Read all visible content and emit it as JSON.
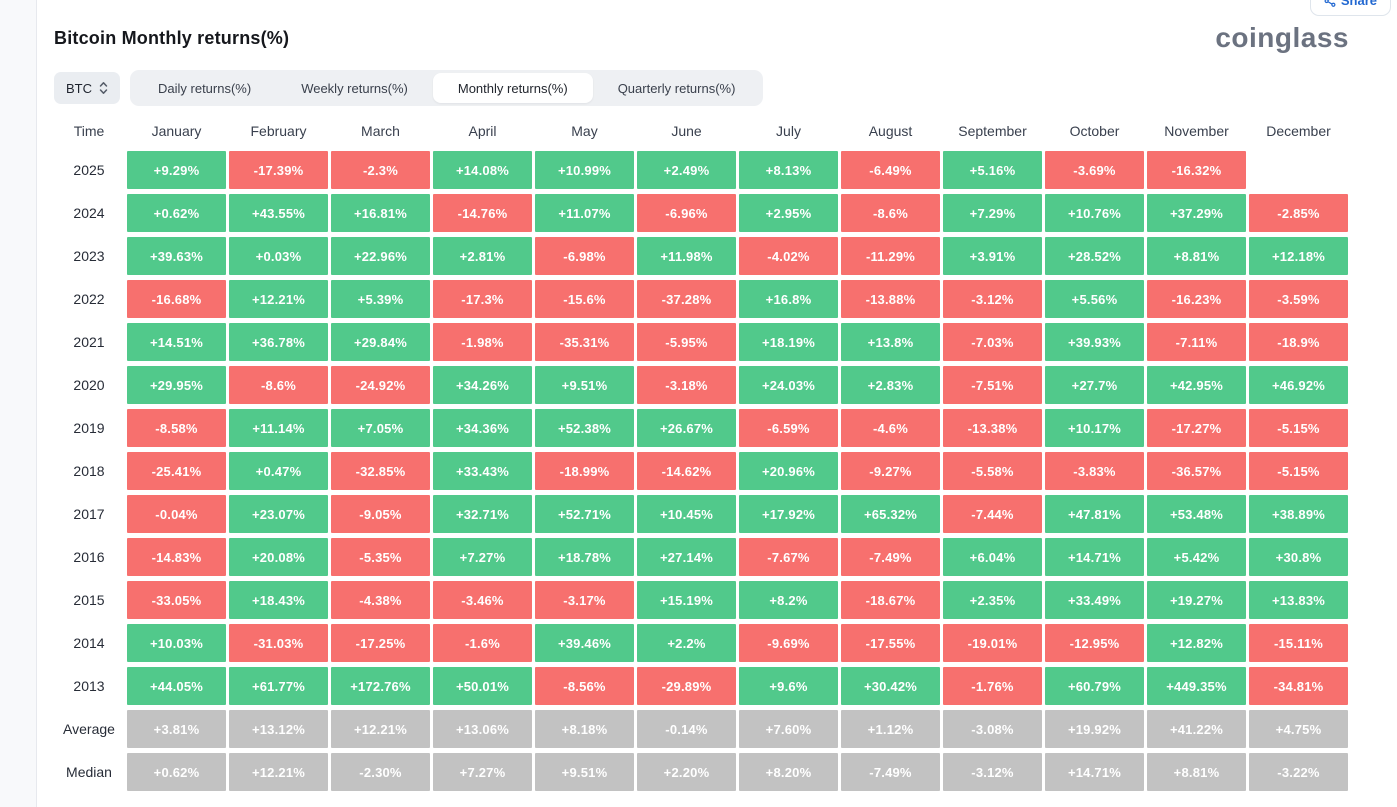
{
  "header": {
    "title": "Bitcoin Monthly returns(%)",
    "logo": "coinglass",
    "share_label": "Share"
  },
  "controls": {
    "symbol": "BTC",
    "tabs": [
      {
        "label": "Daily returns(%)",
        "active": false
      },
      {
        "label": "Weekly returns(%)",
        "active": false
      },
      {
        "label": "Monthly returns(%)",
        "active": true
      },
      {
        "label": "Quarterly returns(%)",
        "active": false
      }
    ]
  },
  "colors": {
    "positive": "#51C98B",
    "negative": "#F7706E",
    "summary": "#C2C2C2"
  },
  "chart_data": {
    "type": "heatmap",
    "title": "Bitcoin Monthly returns(%)",
    "columns": [
      "Time",
      "January",
      "February",
      "March",
      "April",
      "May",
      "June",
      "July",
      "August",
      "September",
      "October",
      "November",
      "December"
    ],
    "rows": [
      {
        "label": "2025",
        "type": "year",
        "values": [
          "+9.29%",
          "-17.39%",
          "-2.3%",
          "+14.08%",
          "+10.99%",
          "+2.49%",
          "+8.13%",
          "-6.49%",
          "+5.16%",
          "-3.69%",
          "-16.32%",
          ""
        ]
      },
      {
        "label": "2024",
        "type": "year",
        "values": [
          "+0.62%",
          "+43.55%",
          "+16.81%",
          "-14.76%",
          "+11.07%",
          "-6.96%",
          "+2.95%",
          "-8.6%",
          "+7.29%",
          "+10.76%",
          "+37.29%",
          "-2.85%"
        ]
      },
      {
        "label": "2023",
        "type": "year",
        "values": [
          "+39.63%",
          "+0.03%",
          "+22.96%",
          "+2.81%",
          "-6.98%",
          "+11.98%",
          "-4.02%",
          "-11.29%",
          "+3.91%",
          "+28.52%",
          "+8.81%",
          "+12.18%"
        ]
      },
      {
        "label": "2022",
        "type": "year",
        "values": [
          "-16.68%",
          "+12.21%",
          "+5.39%",
          "-17.3%",
          "-15.6%",
          "-37.28%",
          "+16.8%",
          "-13.88%",
          "-3.12%",
          "+5.56%",
          "-16.23%",
          "-3.59%"
        ]
      },
      {
        "label": "2021",
        "type": "year",
        "values": [
          "+14.51%",
          "+36.78%",
          "+29.84%",
          "-1.98%",
          "-35.31%",
          "-5.95%",
          "+18.19%",
          "+13.8%",
          "-7.03%",
          "+39.93%",
          "-7.11%",
          "-18.9%"
        ]
      },
      {
        "label": "2020",
        "type": "year",
        "values": [
          "+29.95%",
          "-8.6%",
          "-24.92%",
          "+34.26%",
          "+9.51%",
          "-3.18%",
          "+24.03%",
          "+2.83%",
          "-7.51%",
          "+27.7%",
          "+42.95%",
          "+46.92%"
        ]
      },
      {
        "label": "2019",
        "type": "year",
        "values": [
          "-8.58%",
          "+11.14%",
          "+7.05%",
          "+34.36%",
          "+52.38%",
          "+26.67%",
          "-6.59%",
          "-4.6%",
          "-13.38%",
          "+10.17%",
          "-17.27%",
          "-5.15%"
        ]
      },
      {
        "label": "2018",
        "type": "year",
        "values": [
          "-25.41%",
          "+0.47%",
          "-32.85%",
          "+33.43%",
          "-18.99%",
          "-14.62%",
          "+20.96%",
          "-9.27%",
          "-5.58%",
          "-3.83%",
          "-36.57%",
          "-5.15%"
        ]
      },
      {
        "label": "2017",
        "type": "year",
        "values": [
          "-0.04%",
          "+23.07%",
          "-9.05%",
          "+32.71%",
          "+52.71%",
          "+10.45%",
          "+17.92%",
          "+65.32%",
          "-7.44%",
          "+47.81%",
          "+53.48%",
          "+38.89%"
        ]
      },
      {
        "label": "2016",
        "type": "year",
        "values": [
          "-14.83%",
          "+20.08%",
          "-5.35%",
          "+7.27%",
          "+18.78%",
          "+27.14%",
          "-7.67%",
          "-7.49%",
          "+6.04%",
          "+14.71%",
          "+5.42%",
          "+30.8%"
        ]
      },
      {
        "label": "2015",
        "type": "year",
        "values": [
          "-33.05%",
          "+18.43%",
          "-4.38%",
          "-3.46%",
          "-3.17%",
          "+15.19%",
          "+8.2%",
          "-18.67%",
          "+2.35%",
          "+33.49%",
          "+19.27%",
          "+13.83%"
        ]
      },
      {
        "label": "2014",
        "type": "year",
        "values": [
          "+10.03%",
          "-31.03%",
          "-17.25%",
          "-1.6%",
          "+39.46%",
          "+2.2%",
          "-9.69%",
          "-17.55%",
          "-19.01%",
          "-12.95%",
          "+12.82%",
          "-15.11%"
        ]
      },
      {
        "label": "2013",
        "type": "year",
        "values": [
          "+44.05%",
          "+61.77%",
          "+172.76%",
          "+50.01%",
          "-8.56%",
          "-29.89%",
          "+9.6%",
          "+30.42%",
          "-1.76%",
          "+60.79%",
          "+449.35%",
          "-34.81%"
        ]
      },
      {
        "label": "Average",
        "type": "summary",
        "values": [
          "+3.81%",
          "+13.12%",
          "+12.21%",
          "+13.06%",
          "+8.18%",
          "-0.14%",
          "+7.60%",
          "+1.12%",
          "-3.08%",
          "+19.92%",
          "+41.22%",
          "+4.75%"
        ]
      },
      {
        "label": "Median",
        "type": "summary",
        "values": [
          "+0.62%",
          "+12.21%",
          "-2.30%",
          "+7.27%",
          "+9.51%",
          "+2.20%",
          "+8.20%",
          "-7.49%",
          "-3.12%",
          "+14.71%",
          "+8.81%",
          "-3.22%"
        ]
      }
    ]
  }
}
